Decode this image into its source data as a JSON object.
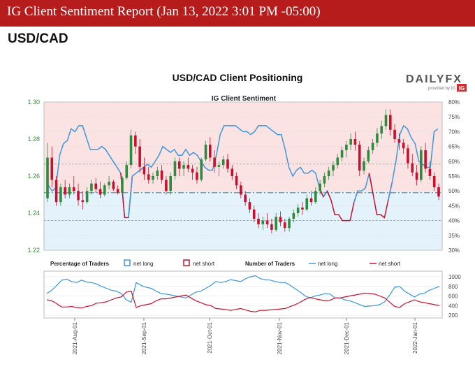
{
  "report": {
    "title": "IG Client Sentiment Report (Jan 13, 2022 3:01 PM -05:00)",
    "pair": "USD/CAD"
  },
  "chart_data": [
    {
      "type": "line",
      "title": "USD/CAD Client Positioning",
      "subtitle": "IG Client Sentiment",
      "brand": "DAILYFX",
      "brand_sub": "provided by IG",
      "price_axis": {
        "ticks": [
          "1.30",
          "1.28",
          "1.26",
          "1.24",
          "1.22"
        ],
        "ylim": [
          1.22,
          1.3
        ]
      },
      "pct_axis": {
        "ticks": [
          "80%",
          "75%",
          "70%",
          "65%",
          "60%",
          "55%",
          "50%",
          "45%",
          "40%",
          "35%",
          "30%"
        ],
        "ylim": [
          30,
          80
        ]
      },
      "x_ticks": [
        "2021-Aug-01",
        "2021-Sep-01",
        "2021-Oct-01",
        "2021-Nov-01",
        "2021-Dec-01",
        "2022-Jan-01"
      ],
      "reference_lines": [
        1.2665,
        1.251,
        1.236
      ],
      "price_ohlc": [
        [
          1.248,
          1.278,
          1.246,
          1.27
        ],
        [
          1.27,
          1.276,
          1.254,
          1.258
        ],
        [
          1.258,
          1.26,
          1.244,
          1.246
        ],
        [
          1.246,
          1.256,
          1.244,
          1.254
        ],
        [
          1.254,
          1.258,
          1.248,
          1.25
        ],
        [
          1.25,
          1.256,
          1.248,
          1.254
        ],
        [
          1.254,
          1.26,
          1.25,
          1.252
        ],
        [
          1.252,
          1.256,
          1.244,
          1.247
        ],
        [
          1.247,
          1.252,
          1.242,
          1.246
        ],
        [
          1.246,
          1.254,
          1.245,
          1.252
        ],
        [
          1.252,
          1.258,
          1.25,
          1.256
        ],
        [
          1.256,
          1.259,
          1.251,
          1.253
        ],
        [
          1.253,
          1.257,
          1.248,
          1.25
        ],
        [
          1.25,
          1.256,
          1.249,
          1.255
        ],
        [
          1.255,
          1.26,
          1.253,
          1.257
        ],
        [
          1.257,
          1.258,
          1.252,
          1.253
        ],
        [
          1.253,
          1.255,
          1.25,
          1.251
        ],
        [
          1.251,
          1.26,
          1.25,
          1.259
        ],
        [
          1.259,
          1.268,
          1.258,
          1.266
        ],
        [
          1.266,
          1.285,
          1.264,
          1.282
        ],
        [
          1.282,
          1.284,
          1.272,
          1.276
        ],
        [
          1.276,
          1.28,
          1.262,
          1.265
        ],
        [
          1.265,
          1.27,
          1.258,
          1.261
        ],
        [
          1.261,
          1.265,
          1.256,
          1.258
        ],
        [
          1.258,
          1.262,
          1.256,
          1.26
        ],
        [
          1.26,
          1.265,
          1.258,
          1.263
        ],
        [
          1.263,
          1.266,
          1.256,
          1.258
        ],
        [
          1.258,
          1.26,
          1.25,
          1.252
        ],
        [
          1.252,
          1.262,
          1.25,
          1.26
        ],
        [
          1.26,
          1.27,
          1.258,
          1.268
        ],
        [
          1.268,
          1.27,
          1.26,
          1.264
        ],
        [
          1.264,
          1.268,
          1.26,
          1.266
        ],
        [
          1.266,
          1.27,
          1.262,
          1.264
        ],
        [
          1.264,
          1.266,
          1.258,
          1.262
        ],
        [
          1.262,
          1.265,
          1.256,
          1.258
        ],
        [
          1.258,
          1.27,
          1.257,
          1.269
        ],
        [
          1.269,
          1.279,
          1.268,
          1.277
        ],
        [
          1.277,
          1.281,
          1.268,
          1.27
        ],
        [
          1.27,
          1.274,
          1.262,
          1.265
        ],
        [
          1.265,
          1.268,
          1.26,
          1.266
        ],
        [
          1.266,
          1.271,
          1.264,
          1.269
        ],
        [
          1.269,
          1.272,
          1.262,
          1.264
        ],
        [
          1.264,
          1.266,
          1.258,
          1.26
        ],
        [
          1.26,
          1.262,
          1.253,
          1.255
        ],
        [
          1.255,
          1.257,
          1.248,
          1.25
        ],
        [
          1.25,
          1.252,
          1.244,
          1.246
        ],
        [
          1.246,
          1.248,
          1.24,
          1.242
        ],
        [
          1.242,
          1.244,
          1.235,
          1.237
        ],
        [
          1.237,
          1.24,
          1.232,
          1.234
        ],
        [
          1.234,
          1.238,
          1.231,
          1.236
        ],
        [
          1.236,
          1.24,
          1.232,
          1.234
        ],
        [
          1.234,
          1.237,
          1.229,
          1.231
        ],
        [
          1.231,
          1.24,
          1.23,
          1.238
        ],
        [
          1.238,
          1.241,
          1.233,
          1.235
        ],
        [
          1.235,
          1.237,
          1.23,
          1.232
        ],
        [
          1.232,
          1.238,
          1.23,
          1.237
        ],
        [
          1.237,
          1.242,
          1.235,
          1.24
        ],
        [
          1.24,
          1.245,
          1.238,
          1.243
        ],
        [
          1.243,
          1.246,
          1.239,
          1.242
        ],
        [
          1.242,
          1.25,
          1.241,
          1.248
        ],
        [
          1.248,
          1.252,
          1.244,
          1.246
        ],
        [
          1.246,
          1.254,
          1.245,
          1.252
        ],
        [
          1.252,
          1.258,
          1.25,
          1.256
        ],
        [
          1.256,
          1.262,
          1.254,
          1.26
        ],
        [
          1.26,
          1.265,
          1.258,
          1.263
        ],
        [
          1.263,
          1.268,
          1.26,
          1.266
        ],
        [
          1.266,
          1.272,
          1.264,
          1.27
        ],
        [
          1.27,
          1.276,
          1.268,
          1.274
        ],
        [
          1.274,
          1.279,
          1.27,
          1.277
        ],
        [
          1.277,
          1.283,
          1.274,
          1.28
        ],
        [
          1.28,
          1.284,
          1.274,
          1.277
        ],
        [
          1.277,
          1.279,
          1.26,
          1.263
        ],
        [
          1.263,
          1.27,
          1.261,
          1.268
        ],
        [
          1.268,
          1.276,
          1.267,
          1.274
        ],
        [
          1.274,
          1.28,
          1.272,
          1.278
        ],
        [
          1.278,
          1.286,
          1.276,
          1.283
        ],
        [
          1.283,
          1.29,
          1.28,
          1.287
        ],
        [
          1.287,
          1.296,
          1.285,
          1.293
        ],
        [
          1.293,
          1.296,
          1.282,
          1.285
        ],
        [
          1.285,
          1.288,
          1.278,
          1.28
        ],
        [
          1.28,
          1.283,
          1.274,
          1.278
        ],
        [
          1.278,
          1.28,
          1.272,
          1.275
        ],
        [
          1.275,
          1.277,
          1.264,
          1.267
        ],
        [
          1.267,
          1.272,
          1.26,
          1.262
        ],
        [
          1.262,
          1.266,
          1.255,
          1.258
        ],
        [
          1.258,
          1.276,
          1.257,
          1.274
        ],
        [
          1.274,
          1.278,
          1.262,
          1.264
        ],
        [
          1.264,
          1.268,
          1.258,
          1.26
        ],
        [
          1.26,
          1.262,
          1.252,
          1.254
        ],
        [
          1.254,
          1.256,
          1.247,
          1.249
        ]
      ],
      "net_long_pct": [
        52,
        50,
        51,
        62,
        66,
        67,
        71,
        70,
        72,
        72,
        68,
        64,
        64,
        64,
        65,
        64,
        62,
        60,
        58,
        56,
        41,
        41,
        55,
        56,
        57,
        58,
        59,
        58,
        60,
        62,
        65,
        64,
        63,
        64,
        62,
        62,
        64,
        62,
        63,
        62,
        60,
        58,
        57,
        57,
        62,
        69,
        72,
        72,
        72,
        72,
        71,
        70,
        70,
        69,
        70,
        72,
        72,
        72,
        71,
        70,
        69,
        69,
        64,
        58,
        55,
        57,
        58,
        56,
        56,
        57,
        56,
        51,
        48,
        50,
        47,
        42,
        42,
        40,
        40,
        40,
        46,
        50,
        50,
        51,
        56,
        49,
        42,
        42,
        41,
        47,
        53,
        60,
        69,
        72,
        71,
        68,
        66,
        60,
        59,
        58,
        58,
        70,
        71
      ],
      "net_long_count": [
        650,
        720,
        820,
        930,
        950,
        900,
        880,
        930,
        890,
        880,
        850,
        800,
        760,
        720,
        700,
        650,
        520,
        470,
        880,
        820,
        780,
        760,
        700,
        650,
        640,
        620,
        600,
        580,
        560,
        620,
        680,
        700,
        760,
        820,
        900,
        880,
        900,
        940,
        920,
        900,
        960,
        1000,
        1020,
        960,
        940,
        930,
        900,
        880,
        880,
        820,
        750,
        680,
        600,
        560,
        600,
        620,
        650,
        640,
        560,
        560,
        520,
        500,
        460,
        420,
        380,
        390,
        400,
        420,
        480,
        620,
        780,
        800,
        700,
        640,
        580,
        640,
        660,
        720,
        760,
        800
      ],
      "net_short_count": [
        520,
        500,
        440,
        370,
        370,
        380,
        360,
        350,
        380,
        400,
        450,
        460,
        480,
        520,
        560,
        580,
        680,
        700,
        360,
        400,
        420,
        440,
        500,
        540,
        540,
        560,
        580,
        600,
        620,
        560,
        500,
        460,
        420,
        400,
        340,
        330,
        320,
        300,
        320,
        340,
        310,
        280,
        270,
        300,
        300,
        310,
        320,
        330,
        340,
        380,
        420,
        470,
        530,
        570,
        540,
        520,
        500,
        510,
        560,
        560,
        580,
        600,
        620,
        640,
        660,
        650,
        640,
        600,
        560,
        470,
        380,
        360,
        440,
        480,
        520,
        480,
        460,
        440,
        420,
        400
      ]
    }
  ],
  "panel": {
    "pct_title": "Percentage of Traders",
    "count_title": "Number of Traders",
    "legend_long": "net long",
    "legend_short": "net short",
    "count_ticks": [
      "1000",
      "800",
      "600",
      "400",
      "200"
    ]
  },
  "colors": {
    "long": "#3b97e0",
    "short": "#c8102e",
    "bull": "#2e8b3d",
    "bear": "#c8102e",
    "banner": "#b71c1c",
    "brand_red": "#d32f2f",
    "price_axis_text": "#3a8a3a"
  }
}
